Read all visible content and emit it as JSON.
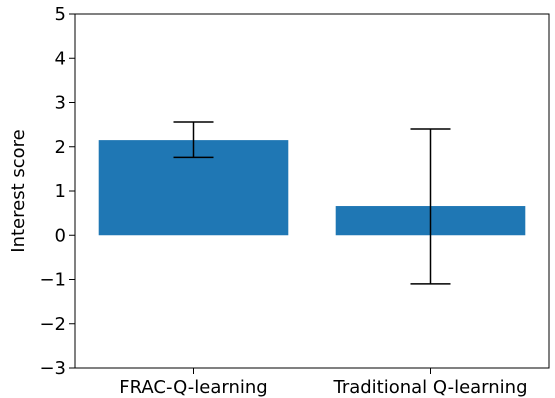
{
  "chart_data": {
    "type": "bar",
    "title": "",
    "xlabel": "",
    "ylabel": "Interest score",
    "categories": [
      "FRAC-Q-learning",
      "Traditional Q-learning"
    ],
    "values": [
      2.15,
      0.66
    ],
    "error_low": [
      1.76,
      -1.1
    ],
    "error_high": [
      2.56,
      2.4
    ],
    "ylim": [
      -3,
      5
    ],
    "yticks": [
      "−3",
      "−2",
      "−1",
      "0",
      "1",
      "2",
      "3",
      "4",
      "5"
    ],
    "grid": false,
    "legend": "none",
    "colors": {
      "bar": "#1f77b4",
      "errorbar": "#000000",
      "axes": "#000000"
    }
  }
}
